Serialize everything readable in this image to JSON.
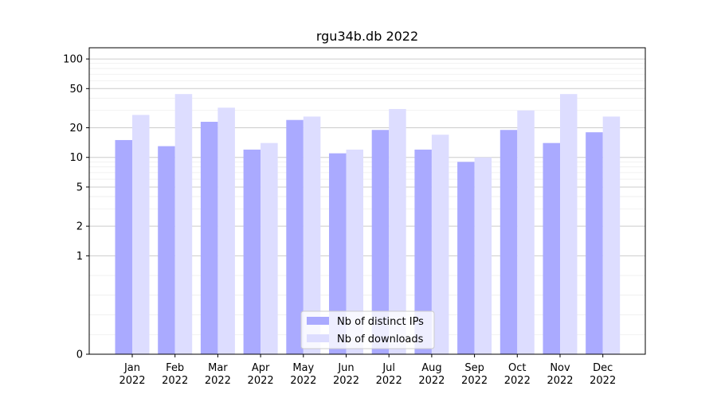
{
  "chart_data": {
    "type": "bar",
    "title": "rgu34b.db 2022",
    "xlabel": "",
    "ylabel": "",
    "scale": "symlog",
    "ylim": [
      0,
      130
    ],
    "yticks": [
      0,
      1,
      2,
      5,
      10,
      20,
      50,
      100
    ],
    "categories": [
      [
        "Jan",
        "2022"
      ],
      [
        "Feb",
        "2022"
      ],
      [
        "Mar",
        "2022"
      ],
      [
        "Apr",
        "2022"
      ],
      [
        "May",
        "2022"
      ],
      [
        "Jun",
        "2022"
      ],
      [
        "Jul",
        "2022"
      ],
      [
        "Aug",
        "2022"
      ],
      [
        "Sep",
        "2022"
      ],
      [
        "Oct",
        "2022"
      ],
      [
        "Nov",
        "2022"
      ],
      [
        "Dec",
        "2022"
      ]
    ],
    "series": [
      {
        "name": "Nb of distinct IPs",
        "color": "#aaaaff",
        "values": [
          15,
          13,
          23,
          12,
          24,
          11,
          19,
          12,
          9,
          19,
          14,
          18
        ]
      },
      {
        "name": "Nb of downloads",
        "color": "#ddddff",
        "values": [
          27,
          44,
          32,
          14,
          26,
          12,
          31,
          17,
          10,
          30,
          44,
          26
        ]
      }
    ],
    "legend_position": "bottom-center",
    "grid": "horizontal"
  }
}
